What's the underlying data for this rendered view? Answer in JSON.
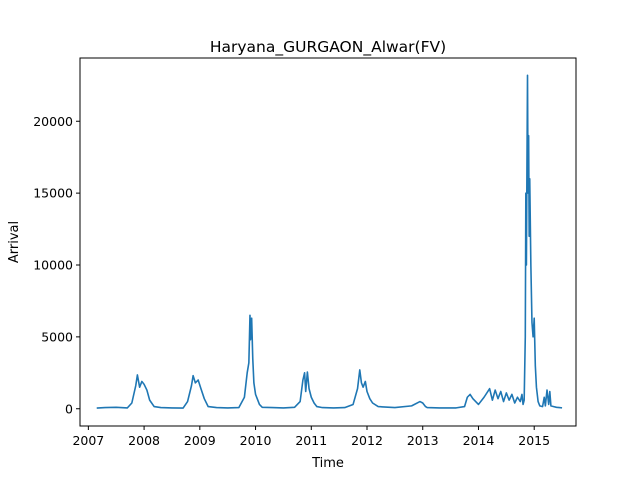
{
  "chart_data": {
    "type": "line",
    "title": "Haryana_GURGAON_Alwar(FV)",
    "xlabel": "Time",
    "ylabel": "Arrival",
    "xlim": [
      2006.85,
      2015.75
    ],
    "ylim": [
      -1200,
      24400
    ],
    "x_ticks": [
      2007,
      2008,
      2009,
      2010,
      2011,
      2012,
      2013,
      2014,
      2015
    ],
    "x_tick_labels": [
      "2007",
      "2008",
      "2009",
      "2010",
      "2011",
      "2012",
      "2013",
      "2014",
      "2015"
    ],
    "y_ticks": [
      0,
      5000,
      10000,
      15000,
      20000
    ],
    "y_tick_labels": [
      "0",
      "5000",
      "10000",
      "15000",
      "20000"
    ],
    "grid": false,
    "legend": "none",
    "series": [
      {
        "color": "#1f77b4",
        "x": [
          2007.15,
          2007.3,
          2007.5,
          2007.7,
          2007.78,
          2007.85,
          2007.88,
          2007.92,
          2007.96,
          2008.0,
          2008.05,
          2008.1,
          2008.18,
          2008.3,
          2008.5,
          2008.7,
          2008.78,
          2008.85,
          2008.88,
          2008.92,
          2008.97,
          2009.02,
          2009.08,
          2009.15,
          2009.3,
          2009.5,
          2009.7,
          2009.8,
          2009.85,
          2009.88,
          2009.9,
          2009.91,
          2009.93,
          2009.95,
          2009.97,
          2010.0,
          2010.03,
          2010.07,
          2010.12,
          2010.3,
          2010.5,
          2010.7,
          2010.8,
          2010.85,
          2010.88,
          2010.9,
          2010.93,
          2010.96,
          2011.0,
          2011.05,
          2011.1,
          2011.2,
          2011.4,
          2011.6,
          2011.75,
          2011.83,
          2011.87,
          2011.9,
          2011.93,
          2011.97,
          2012.0,
          2012.05,
          2012.1,
          2012.2,
          2012.5,
          2012.8,
          2012.95,
          2013.0,
          2013.05,
          2013.08,
          2013.3,
          2013.6,
          2013.75,
          2013.8,
          2013.85,
          2013.9,
          2013.95,
          2014.0,
          2014.1,
          2014.2,
          2014.25,
          2014.3,
          2014.35,
          2014.4,
          2014.45,
          2014.5,
          2014.55,
          2014.6,
          2014.65,
          2014.7,
          2014.75,
          2014.78,
          2014.8,
          2014.82,
          2014.84,
          2014.85,
          2014.86,
          2014.87,
          2014.88,
          2014.89,
          2014.9,
          2014.91,
          2014.92,
          2014.94,
          2014.96,
          2014.98,
          2015.0,
          2015.02,
          2015.04,
          2015.07,
          2015.1,
          2015.15,
          2015.18,
          2015.2,
          2015.23,
          2015.26,
          2015.28,
          2015.3,
          2015.35,
          2015.4,
          2015.45,
          2015.5
        ],
        "y": [
          50,
          80,
          100,
          60,
          400,
          1600,
          2350,
          1500,
          1900,
          1700,
          1300,
          600,
          150,
          80,
          60,
          50,
          500,
          1600,
          2300,
          1800,
          2000,
          1400,
          700,
          150,
          80,
          60,
          80,
          800,
          2500,
          3200,
          6500,
          4800,
          6300,
          3500,
          1800,
          1000,
          700,
          300,
          100,
          80,
          60,
          100,
          500,
          2000,
          2500,
          1200,
          2550,
          1400,
          800,
          400,
          150,
          80,
          60,
          80,
          300,
          1400,
          2700,
          1800,
          1500,
          1900,
          1200,
          700,
          400,
          150,
          80,
          200,
          500,
          400,
          150,
          80,
          60,
          60,
          150,
          800,
          1000,
          700,
          500,
          300,
          800,
          1400,
          600,
          1300,
          700,
          1200,
          500,
          1100,
          600,
          1000,
          400,
          800,
          500,
          1000,
          300,
          600,
          5000,
          15000,
          10000,
          17000,
          23200,
          15000,
          19000,
          12000,
          16000,
          10000,
          6000,
          5000,
          6300,
          3000,
          1500,
          500,
          200,
          150,
          800,
          200,
          1300,
          300,
          1200,
          200,
          150,
          100,
          80,
          60
        ]
      }
    ]
  }
}
